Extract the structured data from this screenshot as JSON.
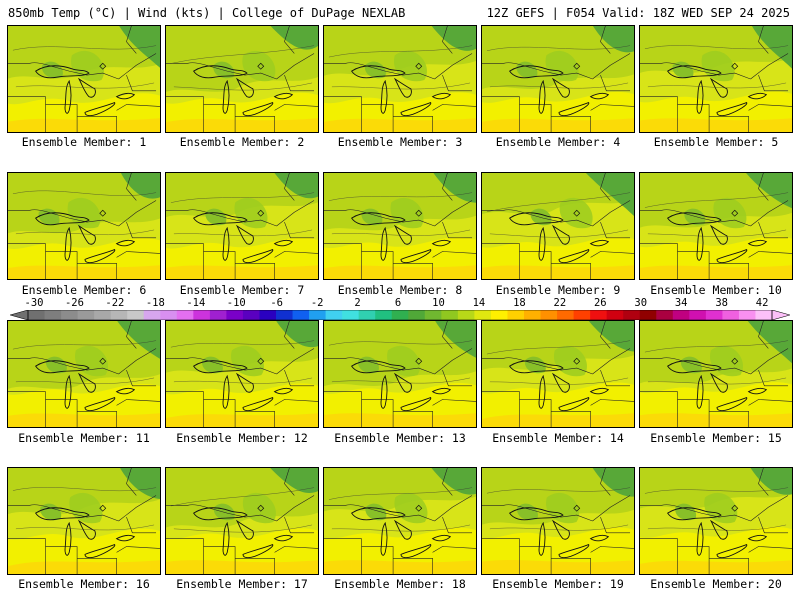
{
  "header": {
    "left": "850mb Temp (°C) | Wind (kts) | College of DuPage NEXLAB",
    "right": "12Z GEFS | F054 Valid: 18Z WED SEP 24 2025"
  },
  "caption_prefix": "Ensemble Member:",
  "members": [
    1,
    2,
    3,
    4,
    5,
    6,
    7,
    8,
    9,
    10,
    11,
    12,
    13,
    14,
    15,
    16,
    17,
    18,
    19,
    20
  ],
  "colorbar": {
    "tick_labels": [
      "-30",
      "-26",
      "-22",
      "-18",
      "-14",
      "-10",
      "-6",
      "-2",
      "2",
      "6",
      "10",
      "14",
      "18",
      "22",
      "26",
      "30",
      "34",
      "38",
      "42"
    ],
    "colors": [
      "#707070",
      "#7e7e7e",
      "#8c8c8c",
      "#9a9a9a",
      "#a8a8a8",
      "#b6b6b6",
      "#c8c8c8",
      "#d7a6ee",
      "#d88ff0",
      "#e36ff0",
      "#cc33dd",
      "#a020d0",
      "#7a00c8",
      "#5a00c0",
      "#2a00c0",
      "#1030d0",
      "#1060f0",
      "#20a0f0",
      "#40d0f0",
      "#40e0e0",
      "#30d0b0",
      "#20c080",
      "#30b050",
      "#50a838",
      "#70b830",
      "#90c820",
      "#b8d818",
      "#e0e810",
      "#fff000",
      "#ffd000",
      "#ffb000",
      "#ff9000",
      "#ff6a00",
      "#ff4000",
      "#f01010",
      "#d00010",
      "#b00010",
      "#900000",
      "#aa0040",
      "#c00080",
      "#d010b0",
      "#e030d0",
      "#f060e0",
      "#f890f0",
      "#fcc0f8"
    ]
  }
}
